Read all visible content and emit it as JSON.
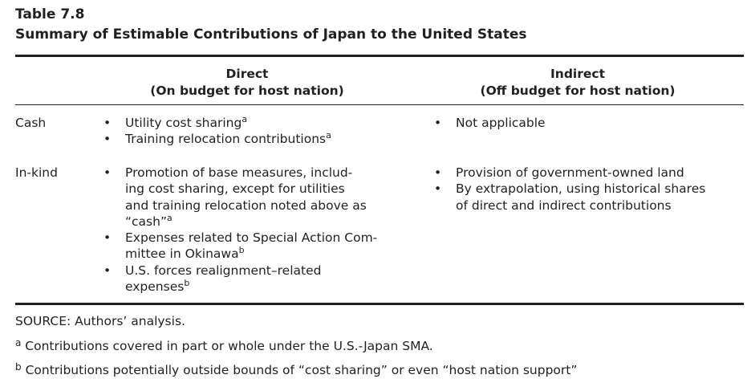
{
  "table": {
    "number": "Table 7.8",
    "title": "Summary of Estimable Contributions of Japan to the United States"
  },
  "columns": {
    "direct": {
      "label": "Direct",
      "sublabel": "(On budget for host nation)"
    },
    "indirect": {
      "label": "Indirect",
      "sublabel": "(Off budget for host nation)"
    }
  },
  "rows": {
    "cash": {
      "label": "Cash",
      "direct": [
        {
          "lines": [
            "Utility cost sharing"
          ],
          "note": "a"
        },
        {
          "lines": [
            "Training relocation contributions"
          ],
          "note": "a"
        }
      ],
      "indirect": [
        {
          "lines": [
            "Not applicable"
          ]
        }
      ]
    },
    "inkind": {
      "label": "In-kind",
      "direct": [
        {
          "lines": [
            "Promotion of base measures, includ-",
            "ing cost sharing, except for utilities",
            "and training relocation noted above as",
            "“cash”"
          ],
          "note": "a"
        },
        {
          "lines": [
            "Expenses related to Special Action Com-",
            "mittee in Okinawa"
          ],
          "note": "b"
        },
        {
          "lines": [
            "U.S. forces realignment–related",
            "expenses"
          ],
          "note": "b"
        }
      ],
      "indirect": [
        {
          "lines": [
            "Provision of government-owned land"
          ]
        },
        {
          "lines": [
            "By extrapolation, using historical shares",
            "of direct and indirect contributions"
          ]
        }
      ]
    }
  },
  "footer": {
    "source": "SOURCE: Authors’ analysis.",
    "notes": [
      {
        "mark": "a",
        "text": "Contributions covered in part or whole under the U.S.-Japan SMA."
      },
      {
        "mark": "b",
        "text": "Contributions potentially outside bounds of “cost sharing” or even “host nation support”"
      }
    ]
  }
}
